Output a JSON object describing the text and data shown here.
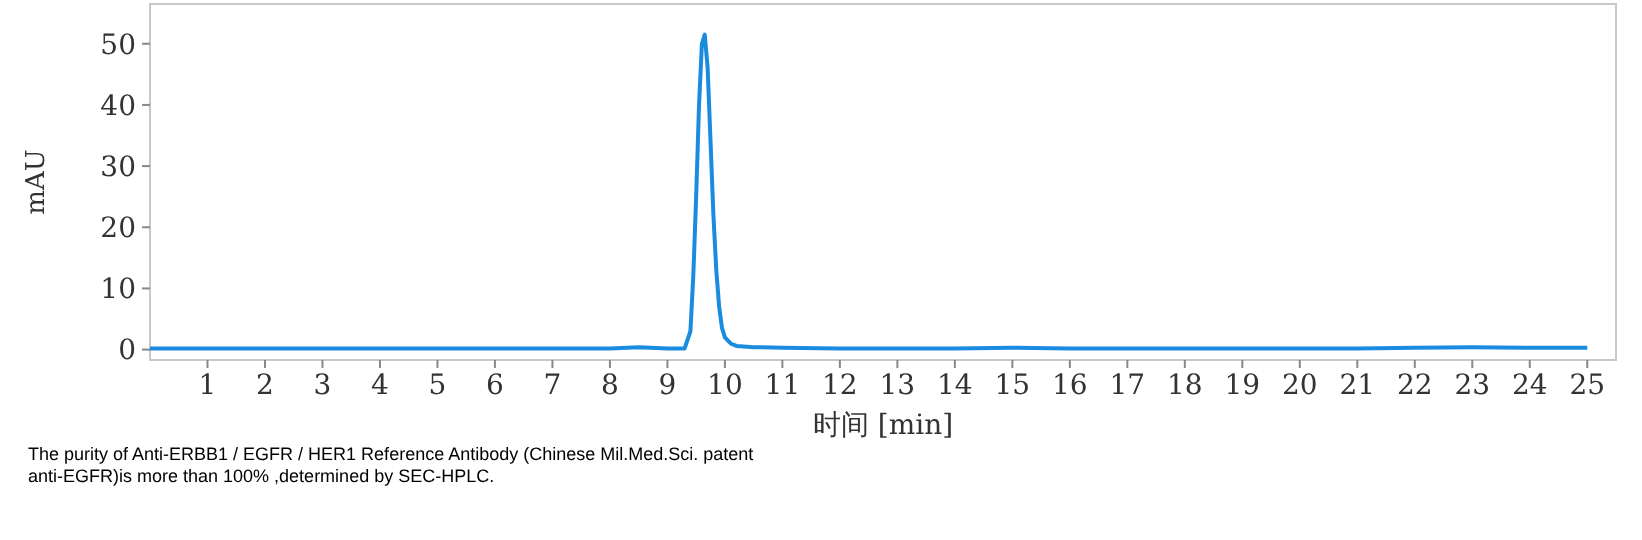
{
  "chart_data": {
    "type": "line",
    "xlabel": "时间 [min]",
    "ylabel": "mAU",
    "x": [
      0,
      1,
      2,
      3,
      4,
      5,
      6,
      7,
      8,
      8.5,
      9,
      9.3,
      9.4,
      9.45,
      9.5,
      9.55,
      9.6,
      9.65,
      9.7,
      9.75,
      9.8,
      9.85,
      9.9,
      9.95,
      10,
      10.1,
      10.2,
      10.5,
      11,
      12,
      13,
      14,
      15,
      16,
      17,
      18,
      19,
      20,
      21,
      22,
      23,
      24,
      25
    ],
    "series": [
      {
        "color": "#1a8ce0",
        "values": [
          0.2,
          0.2,
          0.2,
          0.2,
          0.2,
          0.2,
          0.2,
          0.2,
          0.2,
          0.4,
          0.2,
          0.2,
          3,
          12,
          25,
          40,
          50,
          51.5,
          46,
          34,
          22,
          13,
          7,
          3.5,
          2,
          1,
          0.6,
          0.4,
          0.3,
          0.2,
          0.2,
          0.2,
          0.3,
          0.2,
          0.2,
          0.2,
          0.2,
          0.2,
          0.2,
          0.3,
          0.4,
          0.3,
          0.3
        ]
      }
    ],
    "xlim": [
      0,
      25.5
    ],
    "ylim": [
      -1.7,
      56.5
    ],
    "xticks": [
      1,
      2,
      3,
      4,
      5,
      6,
      7,
      8,
      9,
      10,
      11,
      12,
      13,
      14,
      15,
      16,
      17,
      18,
      19,
      20,
      21,
      22,
      23,
      24,
      25
    ],
    "yticks": [
      0,
      10,
      20,
      30,
      40,
      50
    ],
    "grid": false,
    "line_style": "solid",
    "marker": "none",
    "annotations": [
      "The purity of Anti-ERBB1 / EGFR / HER1 Reference Antibody (Chinese Mil.Med.Sci. patent anti-EGFR)is more than 100% ,determined by SEC-HPLC."
    ]
  }
}
